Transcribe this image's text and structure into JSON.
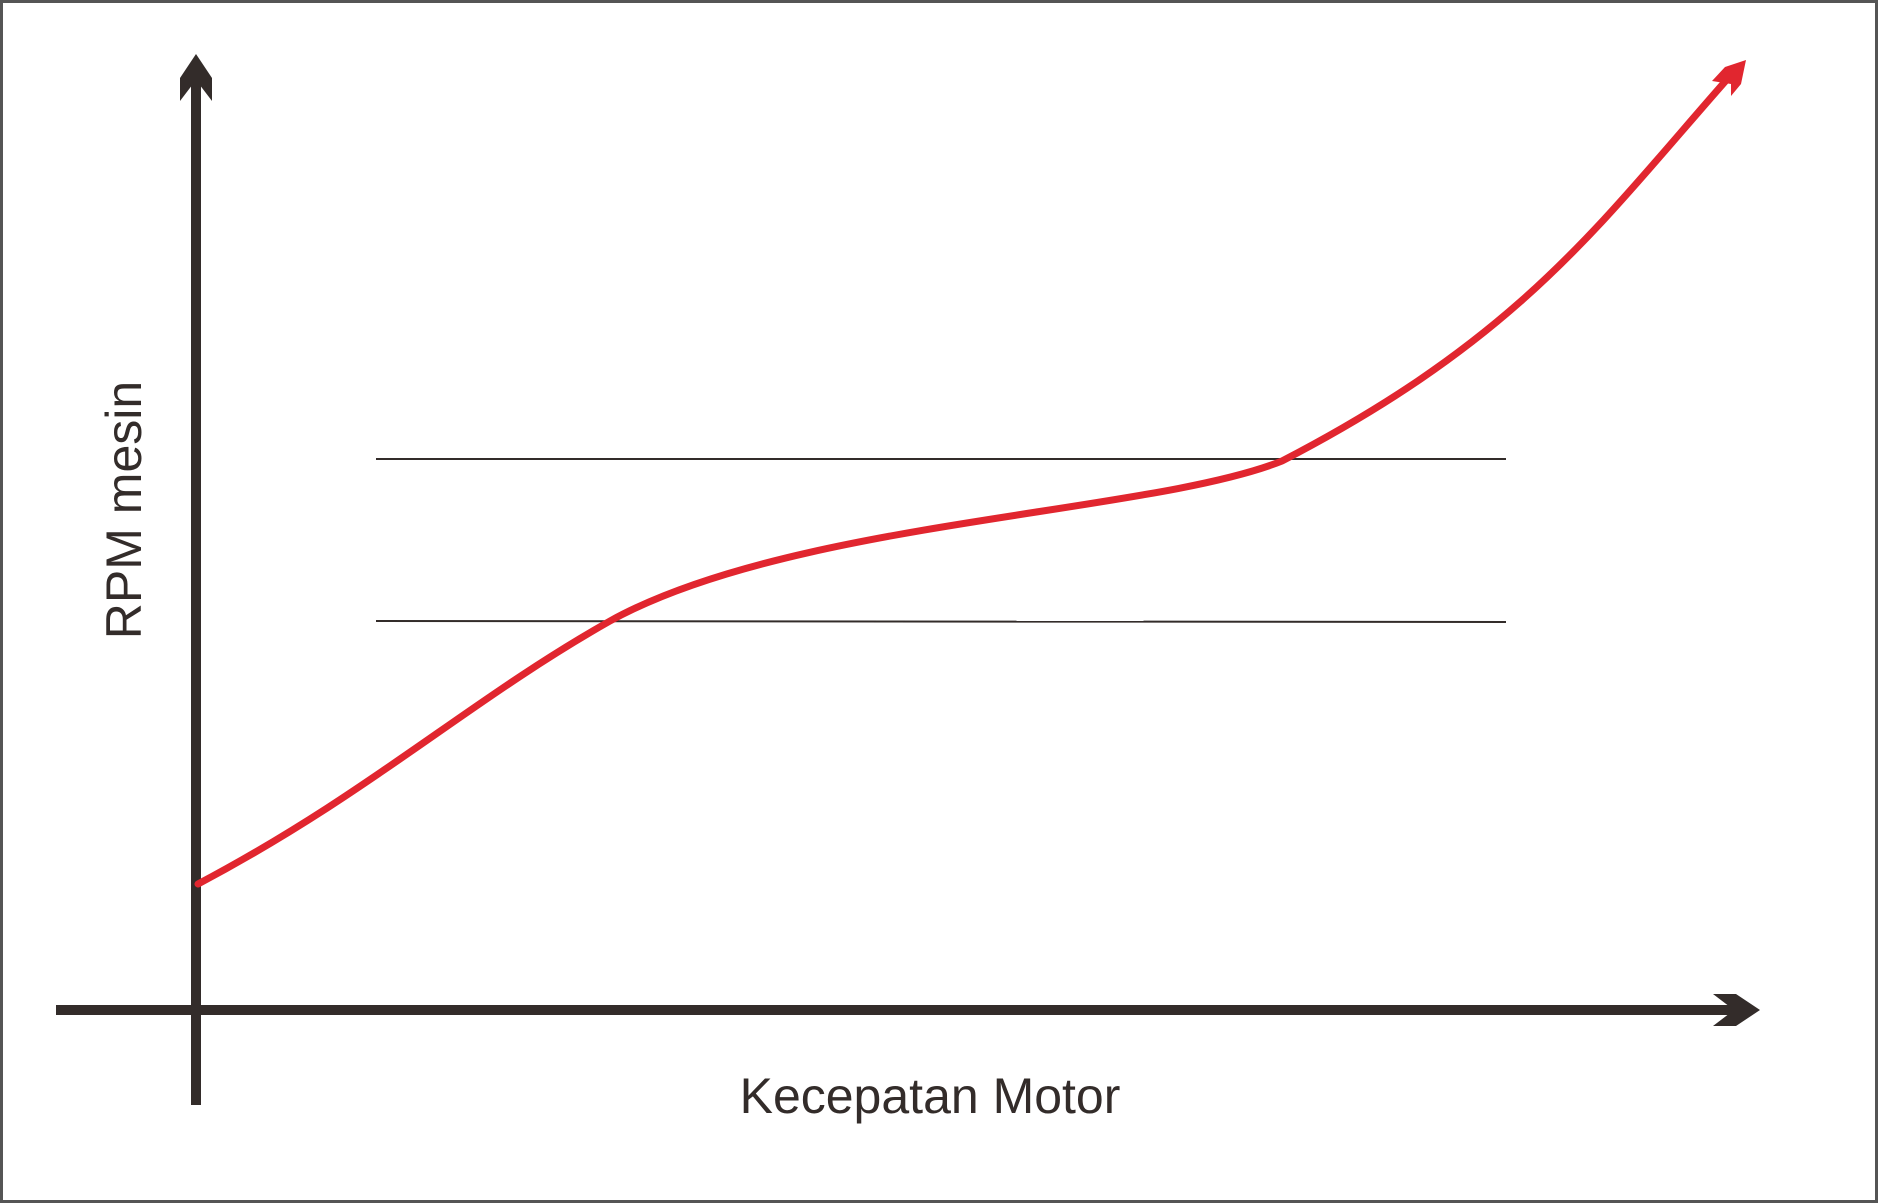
{
  "colors": {
    "axis": "#332c2a",
    "curve": "#e1262f",
    "reference_line": "#332c2a",
    "frame": "#555555",
    "background": "#ffffff"
  },
  "diagram": {
    "x_axis_label": "Kecepatan Motor",
    "y_axis_label": "RPM mesin",
    "reference_lines": 2
  }
}
